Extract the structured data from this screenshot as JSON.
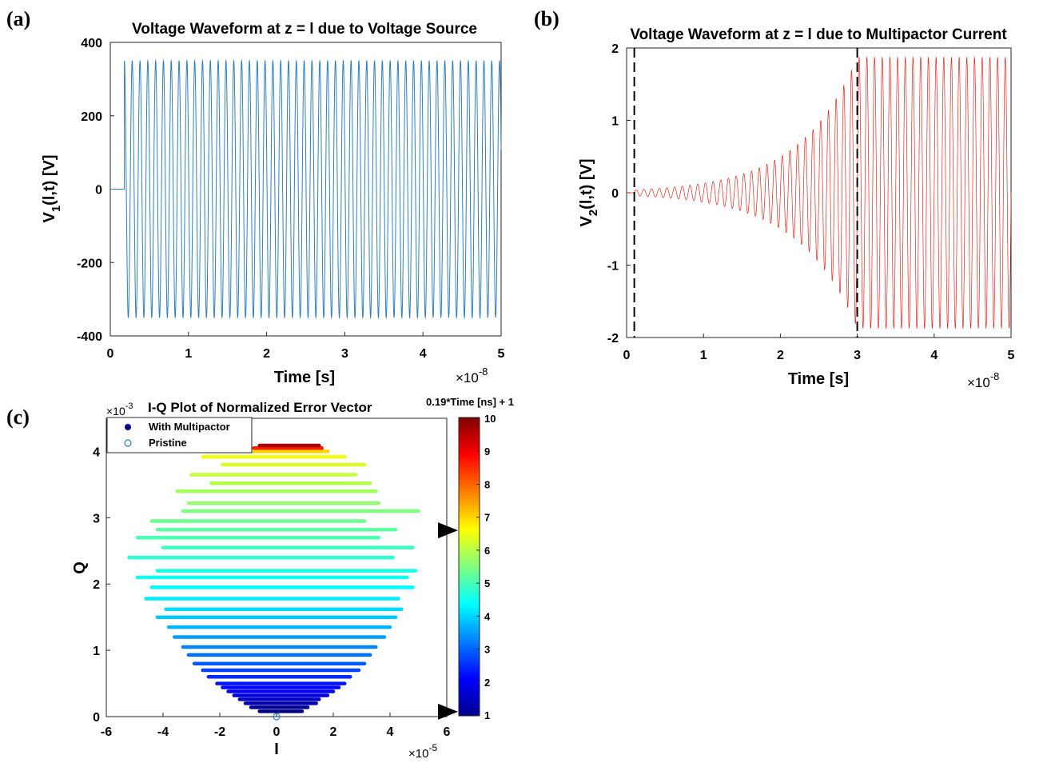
{
  "panels": {
    "a": "(a)",
    "b": "(b)",
    "c": "(c)"
  },
  "chart_data": [
    {
      "type": "line",
      "panel": "(a)",
      "title": "Voltage Waveform at z = l due to Voltage Source",
      "xlabel": "Time [s]",
      "ylabel_main": "V",
      "ylabel_sub": "1",
      "ylabel_rest": "(l,t) [V]",
      "x_multiplier": "×10",
      "x_multiplier_exp": "-8",
      "xlim": [
        0,
        5
      ],
      "ylim": [
        -400,
        400
      ],
      "xticks": [
        "0",
        "1",
        "2",
        "3",
        "4",
        "5"
      ],
      "yticks": [
        "-400",
        "-200",
        "0",
        "200",
        "400"
      ],
      "series": [
        {
          "color": "#2e7fbf",
          "amplitude": 350,
          "start_time": 0.18,
          "end_time": 5,
          "frequency_per_unit": 10,
          "initial_value": 0
        }
      ]
    },
    {
      "type": "line",
      "panel": "(b)",
      "title": "Voltage Waveform at z = l due to Multipactor Current",
      "xlabel": "Time [s]",
      "ylabel_main": "V",
      "ylabel_sub": "2",
      "ylabel_rest": "(l,t) [V]",
      "x_multiplier": "×10",
      "x_multiplier_exp": "-8",
      "xlim": [
        0,
        5
      ],
      "ylim": [
        -2,
        2
      ],
      "xticks": [
        "0",
        "1",
        "2",
        "3",
        "4",
        "5"
      ],
      "yticks": [
        "-2",
        "-1",
        "0",
        "1",
        "2"
      ],
      "vlines": [
        0.1,
        3.0
      ],
      "series": [
        {
          "color": "#e8231b",
          "start_time": 0.1,
          "saturation_time": 3.0,
          "start_amplitude": 0.04,
          "max_amplitude": 1.87,
          "frequency_per_unit": 10,
          "end_time": 5
        }
      ]
    },
    {
      "type": "scatter",
      "panel": "(c)",
      "title": "I-Q Plot of Normalized Error Vector",
      "xlabel": "I",
      "ylabel": "Q",
      "x_multiplier": "×10",
      "x_multiplier_exp": "-5",
      "y_multiplier": "×10",
      "y_multiplier_exp": "-3",
      "xlim": [
        -6,
        6
      ],
      "ylim": [
        0,
        4.5
      ],
      "xticks": [
        "-6",
        "-4",
        "-2",
        "0",
        "2",
        "4",
        "6"
      ],
      "yticks": [
        "0",
        "1",
        "2",
        "3",
        "4"
      ],
      "legend": [
        {
          "label": "With Multipactor",
          "marker": "filled",
          "color": "#00008f"
        },
        {
          "label": "Pristine",
          "marker": "open",
          "color": "#2e7fbf"
        }
      ],
      "legend_position": "top-left",
      "pristine_point": [
        0,
        0
      ],
      "colorbar": {
        "title": "0.19*Time [ns] + 1",
        "range": [
          1,
          10
        ],
        "ticks": [
          "1",
          "2",
          "3",
          "4",
          "5",
          "6",
          "7",
          "8",
          "9",
          "10"
        ],
        "colormap": "jet",
        "markers_at": [
          1.1,
          6.6
        ]
      },
      "strokes": [
        {
          "q": 0.08,
          "i_min": -0.6,
          "i_max": 0.9,
          "c": 1.0
        },
        {
          "q": 0.14,
          "i_min": -0.9,
          "i_max": 1.1,
          "c": 1.2
        },
        {
          "q": 0.2,
          "i_min": -1.1,
          "i_max": 1.4,
          "c": 1.4
        },
        {
          "q": 0.26,
          "i_min": -1.3,
          "i_max": 1.5,
          "c": 1.6
        },
        {
          "q": 0.32,
          "i_min": -1.5,
          "i_max": 1.8,
          "c": 1.8
        },
        {
          "q": 0.38,
          "i_min": -1.7,
          "i_max": 2.0,
          "c": 2.0
        },
        {
          "q": 0.44,
          "i_min": -1.9,
          "i_max": 2.2,
          "c": 2.15
        },
        {
          "q": 0.5,
          "i_min": -2.1,
          "i_max": 2.4,
          "c": 2.3
        },
        {
          "q": 0.6,
          "i_min": -2.4,
          "i_max": 2.6,
          "c": 2.5
        },
        {
          "q": 0.7,
          "i_min": -2.6,
          "i_max": 2.9,
          "c": 2.7
        },
        {
          "q": 0.8,
          "i_min": -2.9,
          "i_max": 3.1,
          "c": 2.9
        },
        {
          "q": 0.93,
          "i_min": -3.1,
          "i_max": 3.3,
          "c": 3.1
        },
        {
          "q": 1.05,
          "i_min": -3.3,
          "i_max": 3.5,
          "c": 3.3
        },
        {
          "q": 1.2,
          "i_min": -3.6,
          "i_max": 3.8,
          "c": 3.5
        },
        {
          "q": 1.35,
          "i_min": -3.8,
          "i_max": 4.0,
          "c": 3.7
        },
        {
          "q": 1.5,
          "i_min": -4.2,
          "i_max": 4.2,
          "c": 3.9
        },
        {
          "q": 1.62,
          "i_min": -3.9,
          "i_max": 4.4,
          "c": 4.05
        },
        {
          "q": 1.78,
          "i_min": -4.6,
          "i_max": 4.3,
          "c": 4.2
        },
        {
          "q": 1.95,
          "i_min": -4.4,
          "i_max": 4.8,
          "c": 4.35
        },
        {
          "q": 2.1,
          "i_min": -4.9,
          "i_max": 4.6,
          "c": 4.5
        },
        {
          "q": 2.2,
          "i_min": -4.2,
          "i_max": 4.9,
          "c": 4.6
        },
        {
          "q": 2.4,
          "i_min": -5.2,
          "i_max": 4.1,
          "c": 4.75
        },
        {
          "q": 2.55,
          "i_min": -4.0,
          "i_max": 4.8,
          "c": 4.9
        },
        {
          "q": 2.7,
          "i_min": -4.9,
          "i_max": 3.6,
          "c": 5.05
        },
        {
          "q": 2.82,
          "i_min": -4.2,
          "i_max": 4.2,
          "c": 5.2
        },
        {
          "q": 2.95,
          "i_min": -4.4,
          "i_max": 3.1,
          "c": 5.35
        },
        {
          "q": 3.1,
          "i_min": -3.3,
          "i_max": 5.0,
          "c": 5.5
        },
        {
          "q": 3.22,
          "i_min": -3.1,
          "i_max": 3.6,
          "c": 5.65
        },
        {
          "q": 3.4,
          "i_min": -3.5,
          "i_max": 3.5,
          "c": 5.8
        },
        {
          "q": 3.52,
          "i_min": -2.3,
          "i_max": 3.3,
          "c": 5.95
        },
        {
          "q": 3.65,
          "i_min": -3.0,
          "i_max": 2.8,
          "c": 6.1
        },
        {
          "q": 3.8,
          "i_min": -1.9,
          "i_max": 3.1,
          "c": 6.3
        },
        {
          "q": 3.92,
          "i_min": -2.6,
          "i_max": 2.4,
          "c": 6.5
        },
        {
          "q": 4.0,
          "i_min": -1.0,
          "i_max": 1.8,
          "c": 7.0
        },
        {
          "q": 4.05,
          "i_min": -0.8,
          "i_max": 1.6,
          "c": 8.6
        },
        {
          "q": 4.09,
          "i_min": -0.6,
          "i_max": 1.5,
          "c": 9.6
        }
      ]
    }
  ]
}
